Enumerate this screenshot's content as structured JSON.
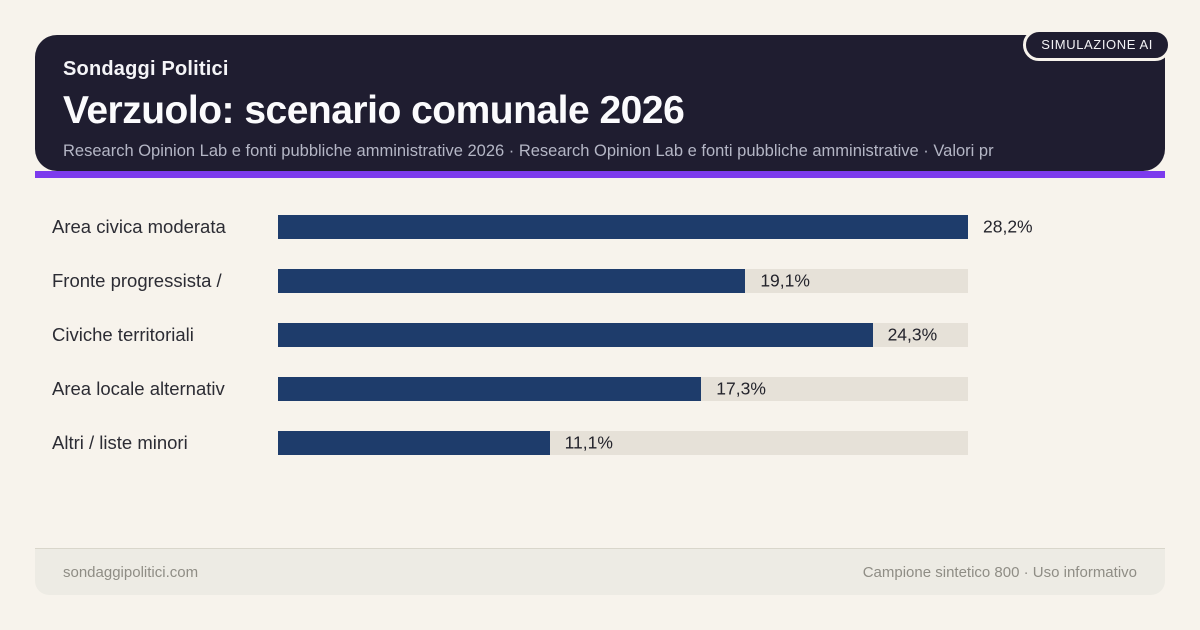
{
  "badge": {
    "label": "SIMULAZIONE AI"
  },
  "header": {
    "eyebrow": "Sondaggi Politici",
    "title": "Verzuolo: scenario comunale 2026",
    "subtitle": "Research Opinion Lab e fonti pubbliche amministrative 2026 · Research Opinion Lab e fonti pubbliche amministrative · Valori pr"
  },
  "chart_data": {
    "type": "bar",
    "orientation": "horizontal",
    "title": "Verzuolo: scenario comunale 2026",
    "categories": [
      "Area civica moderata",
      "Fronte progressista /",
      "Civiche territoriali",
      "Area locale alternativ",
      "Altri / liste minori"
    ],
    "values": [
      28.2,
      19.1,
      24.3,
      17.3,
      11.1
    ],
    "value_labels": [
      "28,2%",
      "19,1%",
      "24,3%",
      "17,3%",
      "11,1%"
    ],
    "unit": "%",
    "xlim": [
      0,
      28.2
    ],
    "grid": false,
    "legend": false,
    "bar_color": "#1e3c6b",
    "track_color": "#e6e1d8"
  },
  "footer": {
    "left": "sondaggipolitici.com",
    "right": "Campione sintetico 800 · Uso informativo"
  },
  "colors": {
    "background": "#f7f3ec",
    "header_background": "#1f1d30",
    "accent_purple": "#7c3aed",
    "bar_navy": "#1e3c6b",
    "bar_track": "#e6e1d8",
    "subtitle_text": "#b4b6c5",
    "footer_text": "#8f8d85"
  }
}
